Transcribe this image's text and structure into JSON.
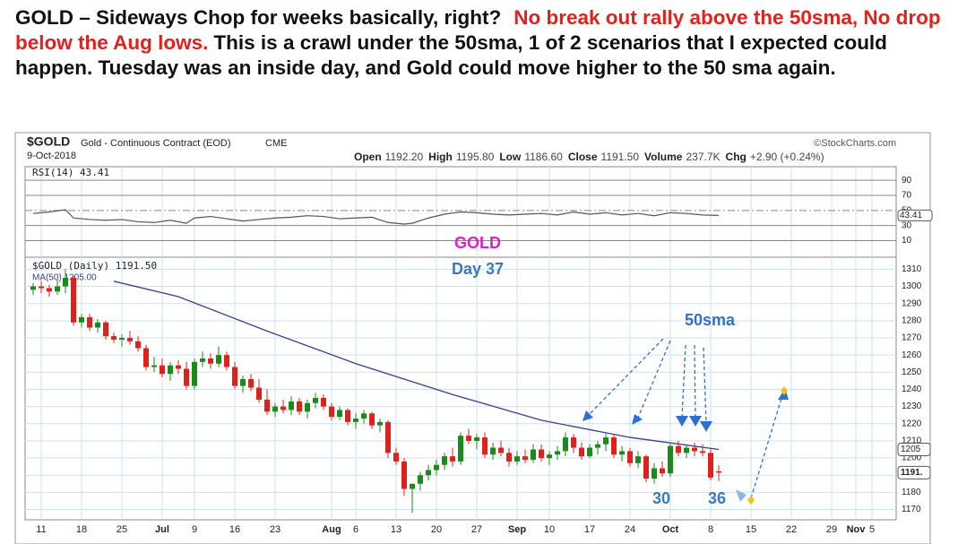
{
  "text": {
    "lead": "GOLD – Sideways Chop for weeks basically, right?",
    "highlight": "No break out rally above the 50sma, No drop below the Aug lows.",
    "rest": "This is a crawl under the 50sma, 1 of 2 scenarios that I expected could happen.  Tuesday was an inside day, and Gold could move higher to the 50 sma again."
  },
  "chart_data": {
    "type": "candlestick",
    "header": {
      "symbol": "$GOLD",
      "name": "Gold - Continuous Contract (EOD)",
      "exchange": "CME",
      "date": "9-Oct-2018",
      "source": "©StockCharts.com"
    },
    "quote": {
      "names": [
        "Open",
        "High",
        "Low",
        "Close",
        "Volume",
        "Chg"
      ],
      "values": [
        1192.2,
        1195.8,
        1186.6,
        1191.5,
        237700,
        2.9
      ],
      "value_labels": [
        "1192.20",
        "1195.80",
        "1186.60",
        "1191.50",
        "237.7K",
        "+2.90 (+0.24%)"
      ]
    },
    "rsi": {
      "label": "RSI(14) 43.41",
      "color": "#555555",
      "x": [
        0,
        2,
        4,
        5,
        7,
        9,
        11,
        13,
        15,
        17,
        19,
        20,
        22,
        24,
        26,
        28,
        30,
        32,
        34,
        36,
        38,
        40,
        42,
        44,
        46,
        47,
        49,
        51,
        53,
        55,
        57,
        59,
        61,
        63,
        65,
        67,
        69,
        71,
        73,
        75,
        77,
        79,
        81,
        83,
        85
      ],
      "values": [
        46,
        48,
        51,
        40,
        38,
        37,
        38,
        35,
        34,
        37,
        33,
        40,
        42,
        39,
        36,
        38,
        40,
        41,
        43,
        42,
        39,
        40,
        41,
        34,
        32,
        33,
        40,
        45,
        48,
        47,
        45,
        44,
        45,
        46,
        44,
        48,
        45,
        47,
        44,
        46,
        43,
        47,
        46,
        44,
        43.41
      ],
      "ylim": [
        -12,
        108
      ],
      "yticks": [
        90,
        70,
        50,
        30,
        10
      ],
      "badge": {
        "value": 43.41,
        "label": "43.41"
      }
    },
    "price": {
      "label": "$GOLD (Daily) 1191.50",
      "up_color": "#1a8a1a",
      "down_color": "#e0201b",
      "ohlc": [
        [
          1298,
          1302,
          1295,
          1300
        ],
        [
          1300,
          1303,
          1296,
          1299
        ],
        [
          1299,
          1301,
          1294,
          1297
        ],
        [
          1297,
          1304,
          1295,
          1300
        ],
        [
          1300,
          1310,
          1296,
          1305
        ],
        [
          1305,
          1306,
          1277,
          1279
        ],
        [
          1279,
          1284,
          1276,
          1282
        ],
        [
          1282,
          1284,
          1274,
          1276
        ],
        [
          1276,
          1281,
          1273,
          1279
        ],
        [
          1279,
          1280,
          1269,
          1271
        ],
        [
          1271,
          1273,
          1267,
          1269
        ],
        [
          1269,
          1272,
          1265,
          1270
        ],
        [
          1270,
          1274,
          1266,
          1268
        ],
        [
          1268,
          1271,
          1262,
          1264
        ],
        [
          1264,
          1266,
          1251,
          1253
        ],
        [
          1253,
          1259,
          1250,
          1254
        ],
        [
          1254,
          1258,
          1247,
          1249
        ],
        [
          1249,
          1256,
          1245,
          1254
        ],
        [
          1254,
          1257,
          1249,
          1252
        ],
        [
          1252,
          1256,
          1240,
          1242
        ],
        [
          1242,
          1258,
          1240,
          1256
        ],
        [
          1256,
          1262,
          1253,
          1258
        ],
        [
          1258,
          1261,
          1252,
          1255
        ],
        [
          1255,
          1265,
          1253,
          1260
        ],
        [
          1260,
          1262,
          1251,
          1253
        ],
        [
          1253,
          1256,
          1240,
          1242
        ],
        [
          1242,
          1248,
          1238,
          1246
        ],
        [
          1246,
          1249,
          1239,
          1241
        ],
        [
          1241,
          1246,
          1232,
          1234
        ],
        [
          1234,
          1240,
          1225,
          1227
        ],
        [
          1227,
          1232,
          1224,
          1230
        ],
        [
          1230,
          1234,
          1226,
          1228
        ],
        [
          1228,
          1236,
          1225,
          1233
        ],
        [
          1233,
          1235,
          1225,
          1227
        ],
        [
          1227,
          1234,
          1223,
          1232
        ],
        [
          1232,
          1238,
          1229,
          1235
        ],
        [
          1235,
          1237,
          1228,
          1230
        ],
        [
          1230,
          1232,
          1222,
          1224
        ],
        [
          1224,
          1230,
          1222,
          1228
        ],
        [
          1228,
          1229,
          1219,
          1221
        ],
        [
          1221,
          1226,
          1217,
          1223
        ],
        [
          1223,
          1228,
          1220,
          1226
        ],
        [
          1226,
          1227,
          1217,
          1219
        ],
        [
          1219,
          1223,
          1215,
          1221
        ],
        [
          1221,
          1222,
          1200,
          1203
        ],
        [
          1203,
          1206,
          1196,
          1198
        ],
        [
          1198,
          1200,
          1178,
          1182
        ],
        [
          1182,
          1185,
          1168,
          1185
        ],
        [
          1185,
          1192,
          1181,
          1190
        ],
        [
          1190,
          1196,
          1187,
          1193
        ],
        [
          1193,
          1199,
          1190,
          1196
        ],
        [
          1196,
          1203,
          1193,
          1201
        ],
        [
          1201,
          1206,
          1195,
          1198
        ],
        [
          1198,
          1215,
          1196,
          1213
        ],
        [
          1213,
          1217,
          1208,
          1210
        ],
        [
          1210,
          1214,
          1205,
          1212
        ],
        [
          1212,
          1215,
          1200,
          1202
        ],
        [
          1202,
          1209,
          1199,
          1206
        ],
        [
          1206,
          1210,
          1201,
          1203
        ],
        [
          1203,
          1206,
          1195,
          1198
        ],
        [
          1198,
          1204,
          1196,
          1201
        ],
        [
          1201,
          1205,
          1197,
          1199
        ],
        [
          1199,
          1208,
          1197,
          1205
        ],
        [
          1205,
          1208,
          1198,
          1200
        ],
        [
          1200,
          1204,
          1196,
          1202
        ],
        [
          1202,
          1207,
          1199,
          1204
        ],
        [
          1204,
          1215,
          1201,
          1212
        ],
        [
          1212,
          1214,
          1203,
          1206
        ],
        [
          1206,
          1209,
          1199,
          1201
        ],
        [
          1201,
          1208,
          1200,
          1206
        ],
        [
          1206,
          1210,
          1202,
          1208
        ],
        [
          1208,
          1214,
          1204,
          1212
        ],
        [
          1212,
          1214,
          1200,
          1202
        ],
        [
          1202,
          1207,
          1198,
          1204
        ],
        [
          1204,
          1206,
          1195,
          1197
        ],
        [
          1197,
          1204,
          1194,
          1201
        ],
        [
          1201,
          1202,
          1186,
          1188
        ],
        [
          1188,
          1197,
          1185,
          1194
        ],
        [
          1194,
          1198,
          1189,
          1191
        ],
        [
          1191,
          1209,
          1189,
          1207
        ],
        [
          1207,
          1210,
          1201,
          1203
        ],
        [
          1203,
          1208,
          1200,
          1206
        ],
        [
          1206,
          1209,
          1201,
          1204
        ],
        [
          1204,
          1208,
          1201,
          1203
        ],
        [
          1203,
          1206,
          1187,
          1188.6
        ],
        [
          1192.2,
          1195.8,
          1186.6,
          1191.5
        ]
      ],
      "ma": {
        "name": "MA(50) 1205.00",
        "color": "#3b3b9a",
        "x": [
          10,
          18,
          29,
          40,
          52,
          63,
          74,
          85
        ],
        "values": [
          1303,
          1294,
          1274,
          1255,
          1237,
          1222,
          1212,
          1205
        ]
      },
      "ylim": [
        1164,
        1317
      ],
      "yticks": [
        1170,
        1180,
        1190,
        1200,
        1210,
        1220,
        1230,
        1240,
        1250,
        1260,
        1270,
        1280,
        1290,
        1300,
        1310
      ],
      "last_labels": [
        {
          "value": 1205,
          "label": "1205"
        },
        {
          "value": 1191.5,
          "label": "1191."
        }
      ]
    },
    "xlim": [
      -1,
      107
    ],
    "xticks": [
      {
        "value": 1,
        "label": "11"
      },
      {
        "value": 6,
        "label": "18"
      },
      {
        "value": 11,
        "label": "25"
      },
      {
        "value": 16,
        "label": "Jul"
      },
      {
        "value": 20,
        "label": "9"
      },
      {
        "value": 25,
        "label": "16"
      },
      {
        "value": 30,
        "label": "23"
      },
      {
        "value": 37,
        "label": "Aug"
      },
      {
        "value": 40,
        "label": "6"
      },
      {
        "value": 45,
        "label": "13"
      },
      {
        "value": 50,
        "label": "20"
      },
      {
        "value": 55,
        "label": "27"
      },
      {
        "value": 60,
        "label": "Sep"
      },
      {
        "value": 64,
        "label": "10"
      },
      {
        "value": 69,
        "label": "17"
      },
      {
        "value": 74,
        "label": "24"
      },
      {
        "value": 79,
        "label": "Oct"
      },
      {
        "value": 84,
        "label": "8"
      },
      {
        "value": 89,
        "label": "15"
      },
      {
        "value": 94,
        "label": "22"
      },
      {
        "value": 99,
        "label": "29"
      },
      {
        "value": 102,
        "label": "Nov"
      },
      {
        "value": 104,
        "label": "5"
      }
    ],
    "annotations": [
      {
        "text": "GOLD",
        "color": "#e01fc8"
      },
      {
        "text": "Day 37",
        "color": "#3a78c2"
      },
      {
        "text": "50sma",
        "color": "#2f6fd0"
      },
      {
        "text": "30",
        "color": "#3a78c2"
      },
      {
        "text": "36",
        "color": "#3a78c2"
      }
    ]
  }
}
